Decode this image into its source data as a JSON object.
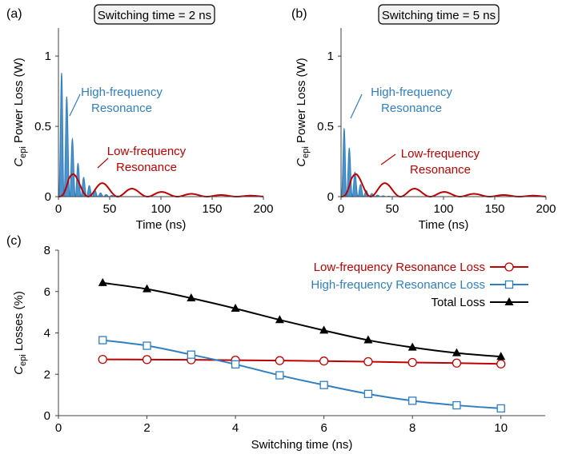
{
  "colors": {
    "red": "#c00000",
    "blue": "#2f7fc1",
    "black": "#000000",
    "axis": "#404040"
  },
  "chart_data": [
    {
      "type": "line",
      "panel_label": "(a)",
      "title": "Switching time = 2 ns",
      "xlabel": "Time (ns)",
      "ylabel_prefix": "C",
      "ylabel_sub": "epi",
      "ylabel_rest": " Power Loss (W)",
      "xlim": [
        0,
        200
      ],
      "ylim": [
        0,
        1.2
      ],
      "xticks": [
        "0",
        "50",
        "100",
        "150",
        "200"
      ],
      "yticks": [
        "0",
        "0.5",
        "1"
      ],
      "grid": false,
      "hf_period_ns": 5.5,
      "hf_peak": 1.08,
      "hf_decay_ns": 10,
      "lf_period_ns": 29,
      "lf_peak": 0.16,
      "lf_decay_ns": 55,
      "annotations": [
        {
          "lines": [
            "High-frequency",
            "Resonance"
          ],
          "color": "blue"
        },
        {
          "lines": [
            "Low-frequency",
            "Resonance"
          ],
          "color": "red"
        }
      ]
    },
    {
      "type": "line",
      "panel_label": "(b)",
      "title": "Switching time = 5 ns",
      "xlabel": "Time (ns)",
      "ylabel_prefix": "C",
      "ylabel_sub": "epi",
      "ylabel_rest": " Power Loss (W)",
      "xlim": [
        0,
        200
      ],
      "ylim": [
        0,
        1.2
      ],
      "xticks": [
        "0",
        "50",
        "100",
        "150",
        "200"
      ],
      "yticks": [
        "0",
        "0.5",
        "1"
      ],
      "grid": false,
      "hf_period_ns": 5.5,
      "hf_peak": 0.58,
      "hf_decay_ns": 8,
      "lf_period_ns": 29,
      "lf_peak": 0.16,
      "lf_decay_ns": 55,
      "annotations": [
        {
          "lines": [
            "High-frequency",
            "Resonance"
          ],
          "color": "blue"
        },
        {
          "lines": [
            "Low-frequency",
            "Resonance"
          ],
          "color": "red"
        }
      ]
    },
    {
      "type": "line",
      "panel_label": "(c)",
      "xlabel": "Switching time (ns)",
      "ylabel_prefix": "C",
      "ylabel_sub": "epi",
      "ylabel_rest": " Losses (%)",
      "xlim": [
        0,
        11
      ],
      "ylim": [
        0,
        8
      ],
      "xticks": [
        "0",
        "2",
        "4",
        "6",
        "8",
        "10"
      ],
      "yticks": [
        "0",
        "2",
        "4",
        "6",
        "8"
      ],
      "grid": false,
      "legend_position": "top-right",
      "x": [
        1,
        2,
        3,
        4,
        5,
        6,
        7,
        8,
        9,
        10
      ],
      "series": [
        {
          "name": "Low-frequency Resonance Loss",
          "color": "red",
          "marker": "circle-open",
          "values": [
            2.72,
            2.71,
            2.7,
            2.68,
            2.66,
            2.64,
            2.61,
            2.57,
            2.54,
            2.5
          ]
        },
        {
          "name": "High-frequency Resonance Loss",
          "color": "blue",
          "marker": "square-open",
          "values": [
            3.65,
            3.38,
            2.95,
            2.48,
            1.95,
            1.48,
            1.05,
            0.72,
            0.5,
            0.35
          ]
        },
        {
          "name": "Total Loss",
          "color": "black",
          "marker": "triangle-filled",
          "values": [
            6.42,
            6.12,
            5.68,
            5.18,
            4.63,
            4.12,
            3.65,
            3.3,
            3.03,
            2.85
          ]
        }
      ]
    }
  ]
}
